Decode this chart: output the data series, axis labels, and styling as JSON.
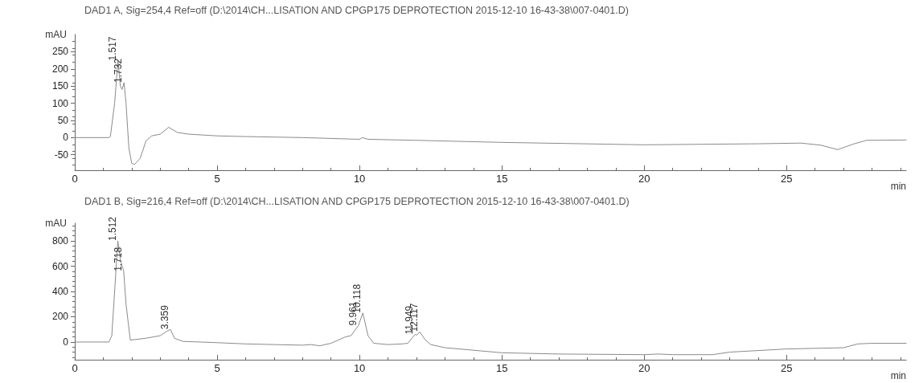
{
  "chart_data": [
    {
      "type": "line",
      "title": "DAD1 A, Sig=254,4 Ref=off (D:\\2014\\CH...LISATION AND CPGP175 DEPROTECTION 2015-12-10 16-43-38\\007-0401.D)",
      "xlabel": "min",
      "ylabel": "mAU",
      "color": "#8a8a8a",
      "marker": "none",
      "grid": false,
      "x": [
        0,
        1.2,
        1.25,
        1.4,
        1.517,
        1.6,
        1.66,
        1.732,
        1.8,
        1.9,
        2.0,
        2.1,
        2.3,
        2.5,
        2.7,
        3.0,
        3.3,
        3.6,
        4,
        5,
        6,
        8,
        10,
        10.1,
        10.3,
        12,
        15,
        20,
        24,
        25.5,
        26.2,
        26.8,
        27.3,
        27.8,
        29.2
      ],
      "values": [
        0,
        0,
        3,
        100,
        224,
        150,
        140,
        160,
        100,
        -30,
        -75,
        -78,
        -60,
        -10,
        5,
        10,
        30,
        15,
        10,
        5,
        3,
        0,
        -5,
        0,
        -5,
        -8,
        -14,
        -21,
        -18,
        -16,
        -22,
        -35,
        -20,
        -8,
        -7
      ],
      "xlim": [
        0,
        29.2
      ],
      "xticks": [
        0,
        5,
        10,
        15,
        20,
        25
      ],
      "ylim": [
        -95,
        300
      ],
      "yticks": [
        -50,
        0,
        50,
        100,
        150,
        200,
        250
      ],
      "annotations": [
        {
          "text": "1.517",
          "x": 1.517,
          "y": 224
        },
        {
          "text": "1.732",
          "x": 1.732,
          "y": 160
        }
      ]
    },
    {
      "type": "line",
      "title": "DAD1 B, Sig=216,4 Ref=off (D:\\2014\\CH...LISATION AND CPGP175 DEPROTECTION 2015-12-10 16-43-38\\007-0401.D)",
      "xlabel": "min",
      "ylabel": "mAU",
      "color": "#8a8a8a",
      "marker": "none",
      "grid": false,
      "x": [
        0,
        1.2,
        1.3,
        1.4,
        1.512,
        1.6,
        1.718,
        1.8,
        1.95,
        2.5,
        3.0,
        3.2,
        3.359,
        3.5,
        3.8,
        5,
        6,
        7,
        8,
        8.3,
        8.6,
        9.0,
        9.5,
        9.7,
        9.961,
        10.118,
        10.3,
        10.5,
        11,
        11.5,
        11.7,
        11.949,
        12.02,
        12.117,
        12.3,
        12.5,
        13,
        15,
        17,
        20,
        20.5,
        21,
        22.4,
        23,
        25,
        27,
        27.5,
        28,
        29.2
      ],
      "values": [
        0,
        0,
        50,
        400,
        800,
        650,
        560,
        300,
        15,
        30,
        50,
        80,
        100,
        30,
        5,
        -5,
        -15,
        -20,
        -25,
        -20,
        -30,
        -10,
        40,
        50,
        130,
        230,
        50,
        -10,
        -20,
        -15,
        -10,
        60,
        55,
        80,
        20,
        -20,
        -45,
        -85,
        -95,
        -100,
        -95,
        -100,
        -100,
        -80,
        -55,
        -45,
        -15,
        -10,
        -10
      ],
      "xlim": [
        0,
        29.2
      ],
      "xticks": [
        0,
        5,
        10,
        15,
        20,
        25
      ],
      "ylim": [
        -140,
        940
      ],
      "yticks": [
        0,
        200,
        400,
        600,
        800
      ],
      "annotations": [
        {
          "text": "1.512",
          "x": 1.512,
          "y": 800
        },
        {
          "text": "1.718",
          "x": 1.718,
          "y": 560
        },
        {
          "text": "3.359",
          "x": 3.359,
          "y": 100
        },
        {
          "text": "9.961",
          "x": 9.961,
          "y": 130
        },
        {
          "text": "10.118",
          "x": 10.118,
          "y": 230
        },
        {
          "text": "11.949",
          "x": 11.949,
          "y": 60
        },
        {
          "text": "12.117",
          "x": 12.117,
          "y": 80
        }
      ]
    }
  ]
}
